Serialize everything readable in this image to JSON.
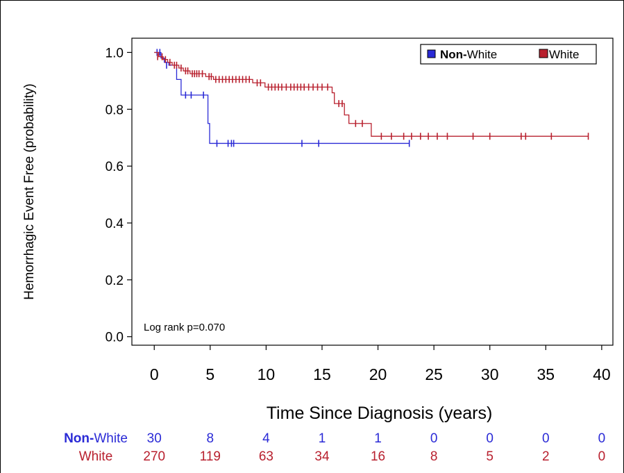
{
  "chart_data": {
    "type": "line",
    "subtype": "kaplan-meier",
    "xlabel": "Time Since Diagnosis (years)",
    "ylabel": "Hemorrhagic Event Free (probability)",
    "xlim": [
      -2,
      41
    ],
    "ylim": [
      -0.03,
      1.05
    ],
    "xticks": [
      0,
      5,
      10,
      15,
      20,
      25,
      30,
      35,
      40
    ],
    "yticks": [
      "0.0",
      "0.2",
      "0.4",
      "0.6",
      "0.8",
      "1.0"
    ],
    "grid": false,
    "legend_position": "top-right",
    "annotation": "Log rank p=0.070",
    "series": [
      {
        "name": "Non-White",
        "legend_bold_part": "Non-",
        "legend_rest": "White",
        "color": "#2a2ad6",
        "dashed": false,
        "steps": [
          [
            0,
            1.0
          ],
          [
            0.6,
            0.98
          ],
          [
            0.9,
            0.965
          ],
          [
            1.3,
            0.955
          ],
          [
            2.0,
            0.905
          ],
          [
            2.4,
            0.85
          ],
          [
            4.8,
            0.75
          ],
          [
            4.95,
            0.68
          ],
          [
            22.8,
            0.68
          ]
        ],
        "censors": [
          [
            0.25,
            1.0
          ],
          [
            0.5,
            1.0
          ],
          [
            1.1,
            0.955
          ],
          [
            2.8,
            0.85
          ],
          [
            3.3,
            0.85
          ],
          [
            4.4,
            0.85
          ],
          [
            5.6,
            0.68
          ],
          [
            6.6,
            0.68
          ],
          [
            6.9,
            0.68
          ],
          [
            7.1,
            0.68
          ],
          [
            13.2,
            0.68
          ],
          [
            14.7,
            0.68
          ],
          [
            22.8,
            0.68
          ]
        ]
      },
      {
        "name": "White",
        "color": "#b8202e",
        "dashed_after": 19.5,
        "steps": [
          [
            0,
            1.0
          ],
          [
            0.4,
            0.985
          ],
          [
            0.8,
            0.975
          ],
          [
            1.2,
            0.965
          ],
          [
            1.6,
            0.955
          ],
          [
            2.2,
            0.945
          ],
          [
            2.6,
            0.935
          ],
          [
            3.2,
            0.925
          ],
          [
            4.6,
            0.915
          ],
          [
            5.3,
            0.905
          ],
          [
            8.8,
            0.893
          ],
          [
            9.9,
            0.878
          ],
          [
            15.9,
            0.858
          ],
          [
            16.1,
            0.82
          ],
          [
            17.0,
            0.78
          ],
          [
            17.4,
            0.75
          ],
          [
            19.4,
            0.705
          ],
          [
            38.8,
            0.705
          ]
        ],
        "censors": [
          [
            0.3,
            0.985
          ],
          [
            0.7,
            0.985
          ],
          [
            1.0,
            0.975
          ],
          [
            1.4,
            0.965
          ],
          [
            1.8,
            0.955
          ],
          [
            2.0,
            0.955
          ],
          [
            2.4,
            0.945
          ],
          [
            2.8,
            0.935
          ],
          [
            3.0,
            0.935
          ],
          [
            3.4,
            0.925
          ],
          [
            3.6,
            0.925
          ],
          [
            3.8,
            0.925
          ],
          [
            4.0,
            0.925
          ],
          [
            4.3,
            0.925
          ],
          [
            4.9,
            0.915
          ],
          [
            5.1,
            0.915
          ],
          [
            5.5,
            0.905
          ],
          [
            5.8,
            0.905
          ],
          [
            6.1,
            0.905
          ],
          [
            6.4,
            0.905
          ],
          [
            6.7,
            0.905
          ],
          [
            7.0,
            0.905
          ],
          [
            7.3,
            0.905
          ],
          [
            7.6,
            0.905
          ],
          [
            7.9,
            0.905
          ],
          [
            8.2,
            0.905
          ],
          [
            8.5,
            0.905
          ],
          [
            9.2,
            0.893
          ],
          [
            9.5,
            0.893
          ],
          [
            10.2,
            0.878
          ],
          [
            10.5,
            0.878
          ],
          [
            10.8,
            0.878
          ],
          [
            11.1,
            0.878
          ],
          [
            11.4,
            0.878
          ],
          [
            11.8,
            0.878
          ],
          [
            12.2,
            0.878
          ],
          [
            12.5,
            0.878
          ],
          [
            12.8,
            0.878
          ],
          [
            13.1,
            0.878
          ],
          [
            13.4,
            0.878
          ],
          [
            13.8,
            0.878
          ],
          [
            14.2,
            0.878
          ],
          [
            14.6,
            0.878
          ],
          [
            15.0,
            0.878
          ],
          [
            15.5,
            0.878
          ],
          [
            16.5,
            0.82
          ],
          [
            16.8,
            0.82
          ],
          [
            18.0,
            0.75
          ],
          [
            18.6,
            0.75
          ],
          [
            20.3,
            0.705
          ],
          [
            21.2,
            0.705
          ],
          [
            22.3,
            0.705
          ],
          [
            23.0,
            0.705
          ],
          [
            23.8,
            0.705
          ],
          [
            24.5,
            0.705
          ],
          [
            25.3,
            0.705
          ],
          [
            26.2,
            0.705
          ],
          [
            28.5,
            0.705
          ],
          [
            30.0,
            0.705
          ],
          [
            32.8,
            0.705
          ],
          [
            33.2,
            0.705
          ],
          [
            35.5,
            0.705
          ],
          [
            38.8,
            0.705
          ]
        ]
      }
    ],
    "risk_table": {
      "times": [
        0,
        5,
        10,
        15,
        20,
        25,
        30,
        35,
        40
      ],
      "rows": [
        {
          "label_bold_part": "Non-",
          "label_rest": "White",
          "color": "#2a2ad6",
          "counts": [
            "30",
            "8",
            "4",
            "1",
            "1",
            "0",
            "0",
            "0",
            "0"
          ]
        },
        {
          "label_bold_part": "",
          "label_rest": "White",
          "color": "#b8202e",
          "counts": [
            "270",
            "119",
            "63",
            "34",
            "16",
            "8",
            "5",
            "2",
            "0"
          ]
        }
      ]
    }
  }
}
